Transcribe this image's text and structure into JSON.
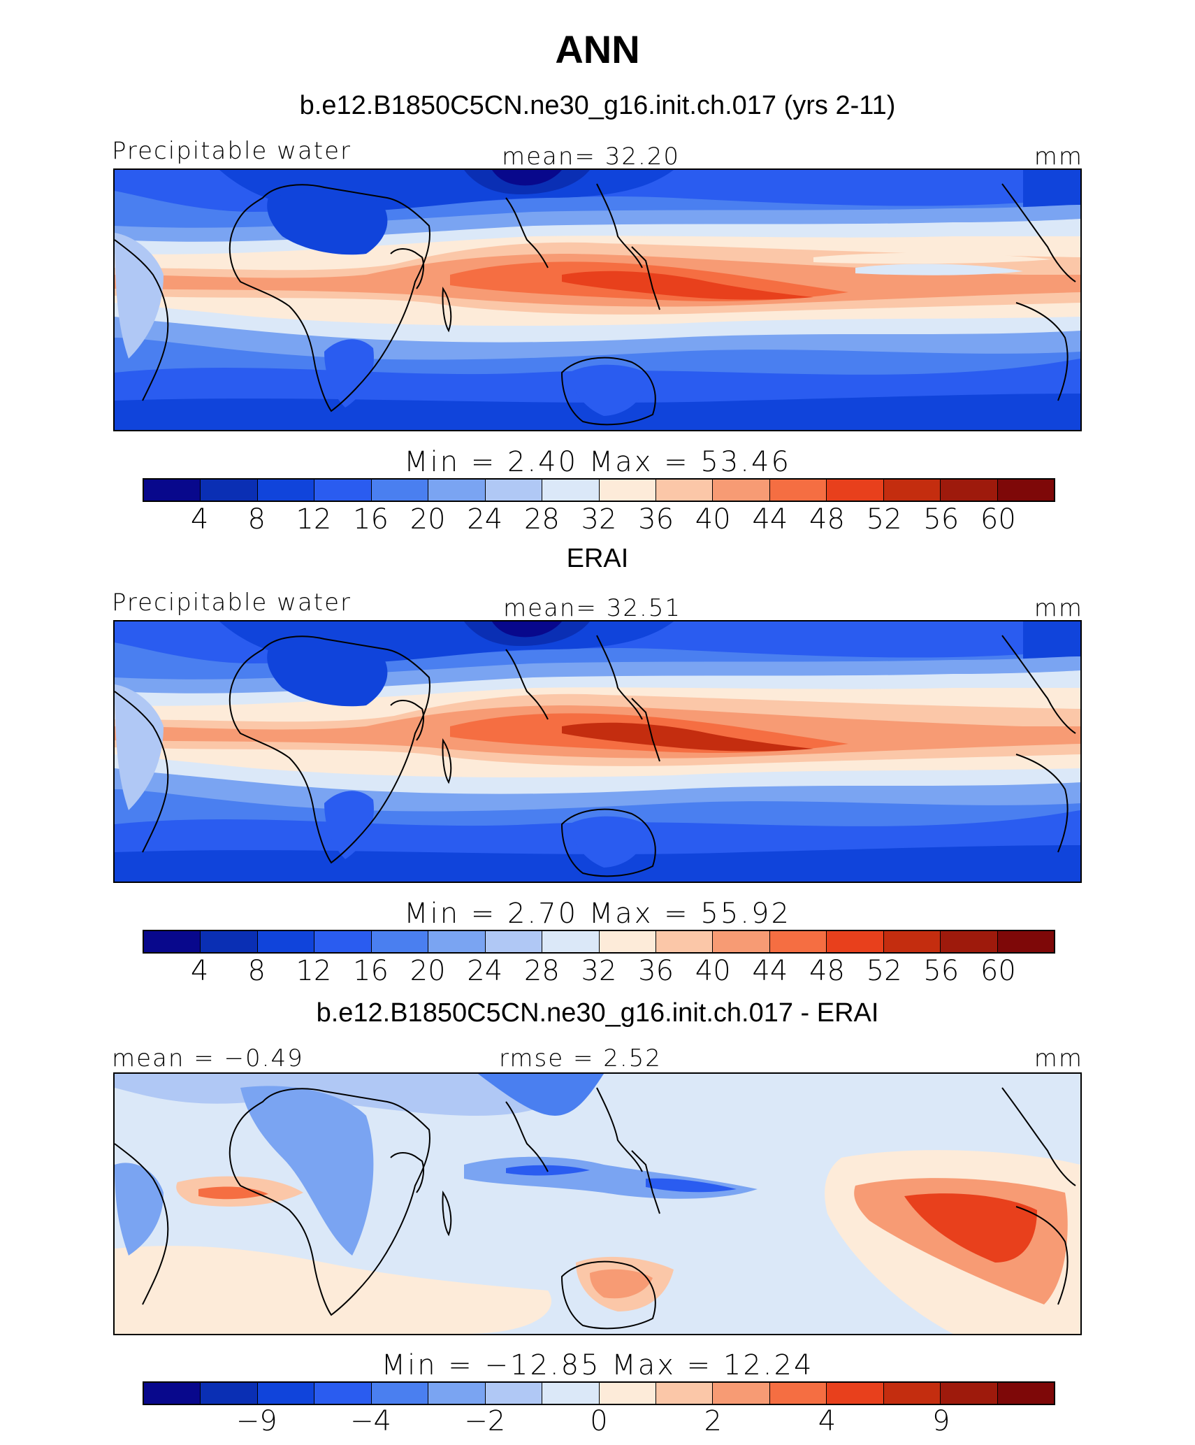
{
  "title": "ANN",
  "colors": [
    "#08088c",
    "#0a2fb4",
    "#1044db",
    "#2a5cf0",
    "#4a7ff0",
    "#7aa4f2",
    "#b0c8f5",
    "#dbe8f8",
    "#fdebd9",
    "#fbc7a8",
    "#f79b74",
    "#f56e42",
    "#e8401c",
    "#c42d0f",
    "#9e1a0c",
    "#7e0808"
  ],
  "panels": [
    {
      "subtitle": "b.e12.B1850C5CN.ne30_g16.init.ch.017 (yrs 2-11)",
      "left_label": "Precipitable water",
      "center_label": "mean=  32.20",
      "right_label": "mm",
      "minmax": "Min =    2.40  Max =   53.46",
      "ticks": [
        "4",
        "8",
        "12",
        "16",
        "20",
        "24",
        "28",
        "32",
        "36",
        "40",
        "44",
        "48",
        "52",
        "56",
        "60"
      ],
      "kind": "model"
    },
    {
      "subtitle": "ERAI",
      "left_label": "Precipitable water",
      "center_label": "mean=  32.51",
      "right_label": "mm",
      "minmax": "Min =    2.70  Max =   55.92",
      "ticks": [
        "4",
        "8",
        "12",
        "16",
        "20",
        "24",
        "28",
        "32",
        "36",
        "40",
        "44",
        "48",
        "52",
        "56",
        "60"
      ],
      "kind": "obs"
    },
    {
      "subtitle": "b.e12.B1850C5CN.ne30_g16.init.ch.017 - ERAI",
      "left_label": "mean =  −0.49",
      "center_label": "rmse =    2.52",
      "right_label": "mm",
      "minmax": "Min =  −12.85  Max =   12.24",
      "ticks": [
        "−9",
        "−4",
        "−2",
        "0",
        "2",
        "4",
        "9"
      ],
      "kind": "diff"
    }
  ]
}
